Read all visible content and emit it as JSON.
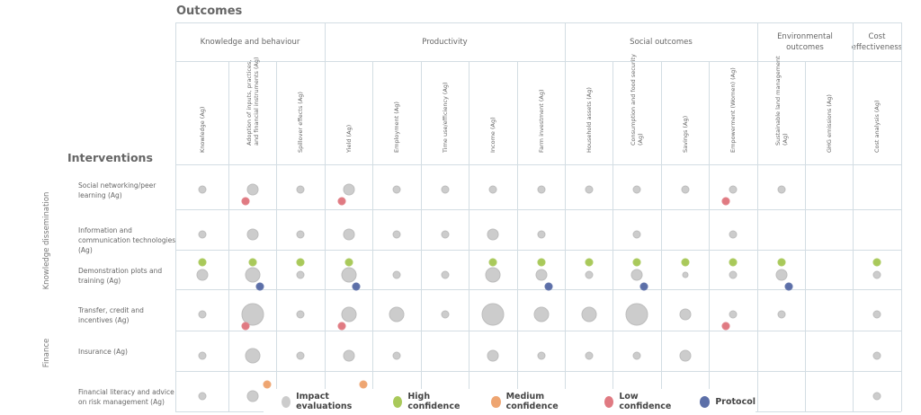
{
  "title": "Outcomes",
  "interventions_label": "Interventions",
  "groups": [
    {
      "label": "Knowledge and behaviour",
      "span": 3
    },
    {
      "label": "Productivity",
      "span": 5
    },
    {
      "label": "Social outcomes",
      "span": 4
    },
    {
      "label": "Environmental outcomes",
      "span": 2
    },
    {
      "label": "Cost effectiveness",
      "span": 1
    }
  ],
  "columns": [
    "Knowledge (Ag)",
    "Adoption of inputs, practices, and financial instruments (Ag)",
    "Spillover effects (Ag)",
    "Yield (Ag)",
    "Employment (Ag)",
    "Time use/efficiency (Ag)",
    "Income (Ag)",
    "Farm investment (Ag)",
    "Household assets (Ag)",
    "Consumption and food security (Ag)",
    "Savings (Ag)",
    "Empowerment (Women) (Ag)",
    "Sustainable land management (Ag)",
    "GHG emissions (Ag)",
    "Cost analysis (Ag)"
  ],
  "sections": [
    {
      "label": "Knowledge dissemination"
    },
    {
      "label": "Finance"
    }
  ],
  "rows": [
    {
      "label": "Social networking/peer learning (Ag)",
      "cells": [
        [
          "s"
        ],
        [
          "m",
          "low"
        ],
        [
          "s"
        ],
        [
          "m",
          "low"
        ],
        [
          "s"
        ],
        [
          "s"
        ],
        [
          "s"
        ],
        [
          "s"
        ],
        [
          "s"
        ],
        [
          "s"
        ],
        [
          "s"
        ],
        [
          "s",
          "low"
        ],
        [
          "s"
        ],
        [],
        []
      ]
    },
    {
      "label": "Information and communication technologies (Ag)",
      "cells": [
        [
          "s"
        ],
        [
          "m"
        ],
        [
          "s"
        ],
        [
          "m"
        ],
        [
          "s"
        ],
        [
          "s"
        ],
        [
          "m"
        ],
        [
          "s"
        ],
        [],
        [
          "s"
        ],
        [],
        [
          "s"
        ],
        [],
        [],
        []
      ]
    },
    {
      "label": "Demonstration plots and training (Ag)",
      "cells": [
        [
          "m",
          "high"
        ],
        [
          "l",
          "high",
          "protocol"
        ],
        [
          "s",
          "high"
        ],
        [
          "l",
          "high",
          "protocol"
        ],
        [
          "s"
        ],
        [
          "s"
        ],
        [
          "l",
          "high"
        ],
        [
          "m",
          "high",
          "protocol"
        ],
        [
          "s",
          "high"
        ],
        [
          "m",
          "high",
          "protocol"
        ],
        [
          "xs",
          "high"
        ],
        [
          "s",
          "high"
        ],
        [
          "m",
          "high",
          "protocol"
        ],
        [],
        [
          "s",
          "high"
        ]
      ]
    },
    {
      "label": "Transfer, credit and incentives (Ag)",
      "cells": [
        [
          "s"
        ],
        [
          "xl",
          "low"
        ],
        [
          "s"
        ],
        [
          "l",
          "low"
        ],
        [
          "l"
        ],
        [
          "s"
        ],
        [
          "xl"
        ],
        [
          "l"
        ],
        [
          "l"
        ],
        [
          "xl"
        ],
        [
          "m"
        ],
        [
          "s",
          "low"
        ],
        [
          "s"
        ],
        [],
        [
          "s"
        ]
      ]
    },
    {
      "label": "Insurance (Ag)",
      "cells": [
        [
          "s"
        ],
        [
          "l"
        ],
        [
          "s"
        ],
        [
          "m"
        ],
        [
          "s"
        ],
        [],
        [
          "m"
        ],
        [
          "s"
        ],
        [
          "s"
        ],
        [
          "s"
        ],
        [
          "m"
        ],
        [],
        [],
        [],
        [
          "s"
        ]
      ]
    },
    {
      "label": "Financial literacy and advice on risk management (Ag)",
      "cells": [
        [
          "s"
        ],
        [
          "m",
          "medium"
        ],
        [
          "s"
        ],
        [
          "s",
          "medium"
        ],
        [],
        [],
        [
          "s"
        ],
        [],
        [
          "s"
        ],
        [
          "s"
        ],
        [
          "s"
        ],
        [],
        [],
        [],
        [
          "s"
        ]
      ]
    }
  ],
  "legend": [
    {
      "key": "impact",
      "label": "Impact evaluations",
      "color": "#cccccc"
    },
    {
      "key": "high",
      "label": "High confidence",
      "color": "#a9c95a"
    },
    {
      "key": "medium",
      "label": "Medium confidence",
      "color": "#eea571"
    },
    {
      "key": "low",
      "label": "Low confidence",
      "color": "#e07a82"
    },
    {
      "key": "protocol",
      "label": "Protocol",
      "color": "#5c6fa8"
    }
  ]
}
